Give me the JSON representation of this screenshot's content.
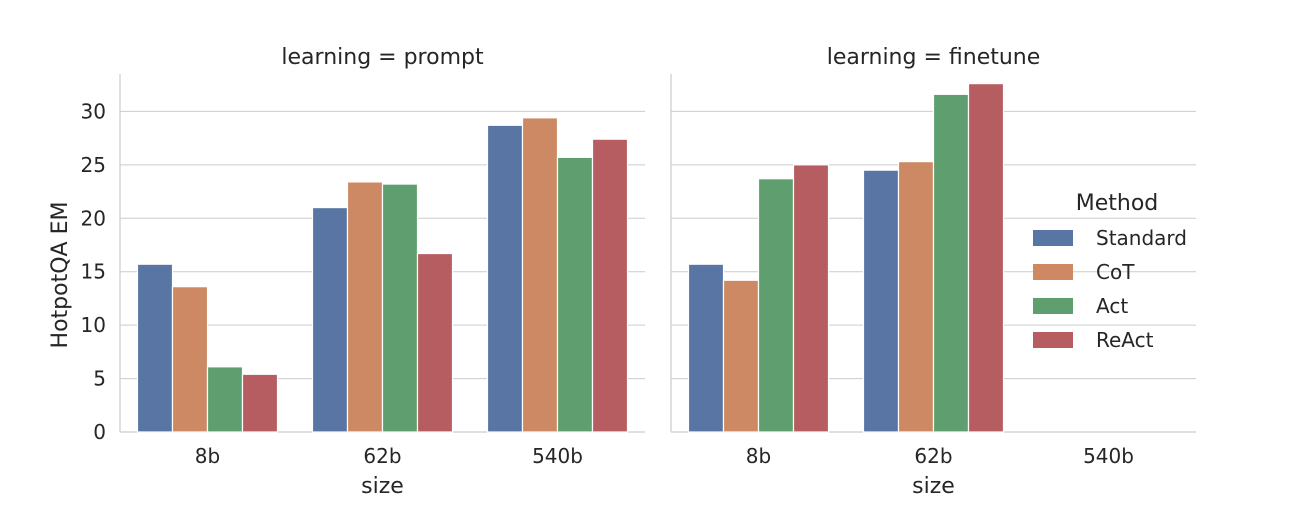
{
  "chart_data": {
    "type": "bar",
    "ylabel": "HotpotQA EM",
    "ylim": [
      0,
      33.5
    ],
    "yticks": [
      0,
      5,
      10,
      15,
      20,
      25,
      30
    ],
    "grid": true,
    "legend": {
      "title": "Method",
      "placement": "right",
      "entries": [
        {
          "name": "Standard",
          "color": "#5875a4"
        },
        {
          "name": "CoT",
          "color": "#cc8963"
        },
        {
          "name": "Act",
          "color": "#5f9e6e"
        },
        {
          "name": "ReAct",
          "color": "#b55d60"
        }
      ]
    },
    "panels": [
      {
        "title": "learning = prompt",
        "xlabel": "size",
        "categories": [
          "8b",
          "62b",
          "540b"
        ],
        "series": [
          {
            "name": "Standard",
            "values": [
              15.7,
              21.0,
              28.7
            ]
          },
          {
            "name": "CoT",
            "values": [
              13.6,
              23.4,
              29.4
            ]
          },
          {
            "name": "Act",
            "values": [
              6.1,
              23.2,
              25.7
            ]
          },
          {
            "name": "ReAct",
            "values": [
              5.4,
              16.7,
              27.4
            ]
          }
        ]
      },
      {
        "title": "learning = finetune",
        "xlabel": "size",
        "categories": [
          "8b",
          "62b",
          "540b"
        ],
        "series": [
          {
            "name": "Standard",
            "values": [
              15.7,
              24.5,
              null
            ]
          },
          {
            "name": "CoT",
            "values": [
              14.2,
              25.3,
              null
            ]
          },
          {
            "name": "Act",
            "values": [
              23.7,
              31.6,
              null
            ]
          },
          {
            "name": "ReAct",
            "values": [
              25.0,
              32.6,
              null
            ]
          }
        ]
      }
    ]
  }
}
